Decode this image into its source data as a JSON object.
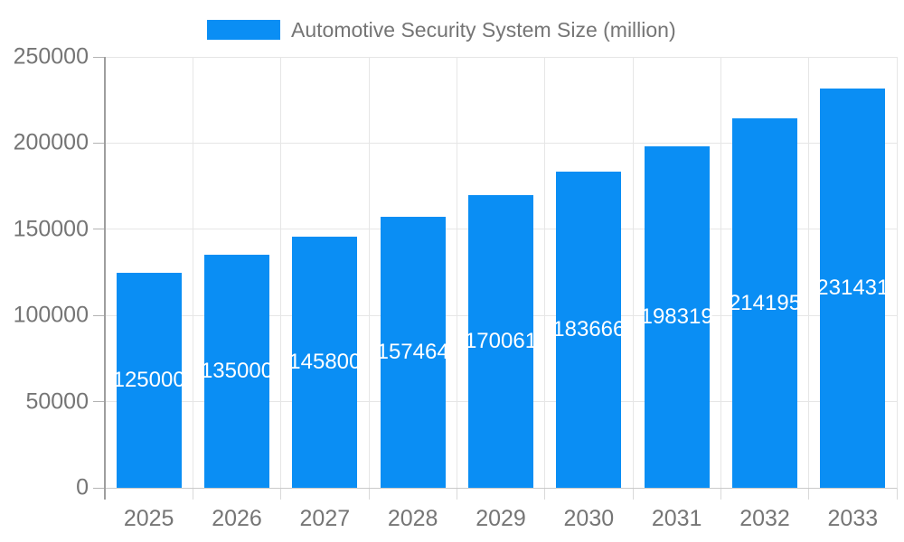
{
  "chart_data": {
    "type": "bar",
    "title": "Automotive Security System Size (million)",
    "categories": [
      "2025",
      "2026",
      "2027",
      "2028",
      "2029",
      "2030",
      "2031",
      "2032",
      "2033"
    ],
    "values": [
      125000,
      135000,
      145800,
      157464,
      170061,
      183666,
      198319,
      214195,
      231431
    ],
    "value_labels": [
      "125000",
      "135000",
      "145800",
      "157464",
      "170061",
      "183666",
      "198319",
      "214195",
      "231431"
    ],
    "yticks": [
      0,
      50000,
      100000,
      150000,
      200000,
      250000
    ],
    "ytick_labels": [
      "0",
      "50000",
      "100000",
      "150000",
      "200000",
      "250000"
    ],
    "ylim": [
      0,
      250000
    ],
    "xlabel": "",
    "ylabel": "",
    "grid": true,
    "legend_position": "top",
    "colors": {
      "bar": "#0a8ef4",
      "value_label": "#ffffff",
      "axis_text": "#757575",
      "gridline": "#e6e6e6",
      "axis_line": "#9e9e9e",
      "baseline": "#c9c9c9",
      "tick": "#b3b3b3",
      "x_tick": "#d9d9d9"
    }
  }
}
